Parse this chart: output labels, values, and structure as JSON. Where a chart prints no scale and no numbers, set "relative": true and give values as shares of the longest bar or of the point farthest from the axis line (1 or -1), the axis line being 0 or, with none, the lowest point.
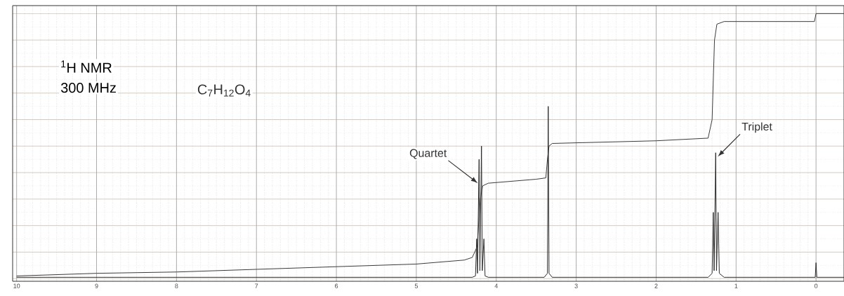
{
  "chart_data": {
    "type": "line",
    "relative": true,
    "title": "$^{1}$H NMR",
    "subtitle": "300 MHz",
    "annotations": [
      "C$_{7}$H$_{12}$O$_{4}$",
      "Quartet",
      "Triplet"
    ],
    "xlim": [
      10.05,
      -0.35
    ],
    "xticks": [
      10,
      9,
      8,
      7,
      6,
      5,
      4,
      3,
      2,
      1,
      0
    ],
    "grid": true,
    "marker": "none",
    "line_style": "solid",
    "series": [
      {
        "color": "#2b2b2b",
        "x": [
          10,
          4.3,
          4.26,
          4.245,
          4.235,
          4.215,
          4.205,
          4.185,
          4.175,
          4.155,
          4.14,
          4.1,
          3.4,
          3.36,
          3.35,
          3.34,
          3.3,
          1.35,
          1.3,
          1.285,
          1.275,
          1.255,
          1.245,
          1.225,
          1.21,
          1.15,
          0.01,
          0,
          -0.01,
          -0.35
        ],
        "values": [
          0.005,
          0.005,
          0.01,
          0.15,
          0.02,
          0.45,
          0.03,
          0.5,
          0.03,
          0.15,
          0.01,
          0.005,
          0.005,
          0.02,
          0.65,
          0.02,
          0.005,
          0.005,
          0.02,
          0.25,
          0.03,
          0.475,
          0.03,
          0.25,
          0.02,
          0.005,
          0.005,
          0.06,
          0.005,
          0.005
        ]
      },
      {
        "color": "#3a3a3a",
        "x": [
          10,
          9,
          8,
          7,
          6,
          5,
          4.4,
          4.3,
          4.24,
          4.2,
          4.17,
          4.1,
          3.5,
          3.38,
          3.36,
          3.34,
          3.3,
          2,
          1.35,
          1.3,
          1.27,
          1.24,
          1.15,
          0.02,
          0,
          -0.35
        ],
        "values": [
          0.01,
          0.02,
          0.025,
          0.035,
          0.045,
          0.055,
          0.07,
          0.08,
          0.12,
          0.3,
          0.35,
          0.36,
          0.375,
          0.38,
          0.45,
          0.5,
          0.51,
          0.52,
          0.53,
          0.6,
          0.9,
          0.96,
          0.97,
          0.97,
          1,
          1
        ]
      }
    ]
  }
}
